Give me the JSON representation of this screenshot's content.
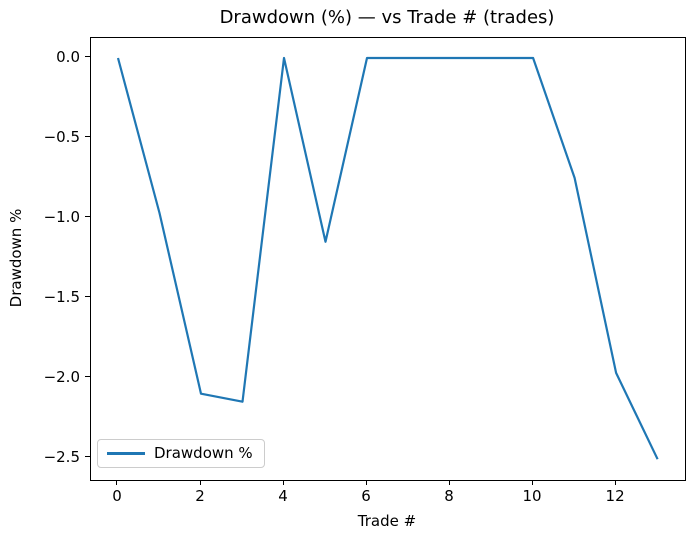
{
  "figure": {
    "background": "#ffffff",
    "axis_color": "#000000"
  },
  "chart_data": {
    "type": "line",
    "title": "Drawdown (%) — vs Trade # (trades)",
    "xlabel": "Trade #",
    "ylabel": "Drawdown %",
    "grid": false,
    "legend": {
      "position": "lower left",
      "entries": [
        "Drawdown %"
      ]
    },
    "series": [
      {
        "name": "Drawdown %",
        "color": "#1f77b4",
        "x": [
          0,
          1,
          2,
          3,
          4,
          5,
          6,
          7,
          8,
          9,
          10,
          11,
          12,
          13
        ],
        "y": [
          0.0,
          -0.97,
          -2.1,
          -2.15,
          0.0,
          -1.15,
          0.0,
          0.0,
          0.0,
          0.0,
          0.0,
          -0.75,
          -1.97,
          -2.51
        ]
      }
    ],
    "xlim": [
      -0.65,
      13.66
    ],
    "ylim": [
      -2.64,
      0.125
    ],
    "xticks": {
      "values": [
        0,
        2,
        4,
        6,
        8,
        10,
        12
      ],
      "labels": [
        "0",
        "2",
        "4",
        "6",
        "8",
        "10",
        "12"
      ]
    },
    "yticks": {
      "values": [
        0,
        -0.5,
        -1.0,
        -1.5,
        -2.0,
        -2.5
      ],
      "labels": [
        "0.0",
        "−0.5",
        "−1.0",
        "−1.5",
        "−2.0",
        "−2.5"
      ]
    }
  }
}
